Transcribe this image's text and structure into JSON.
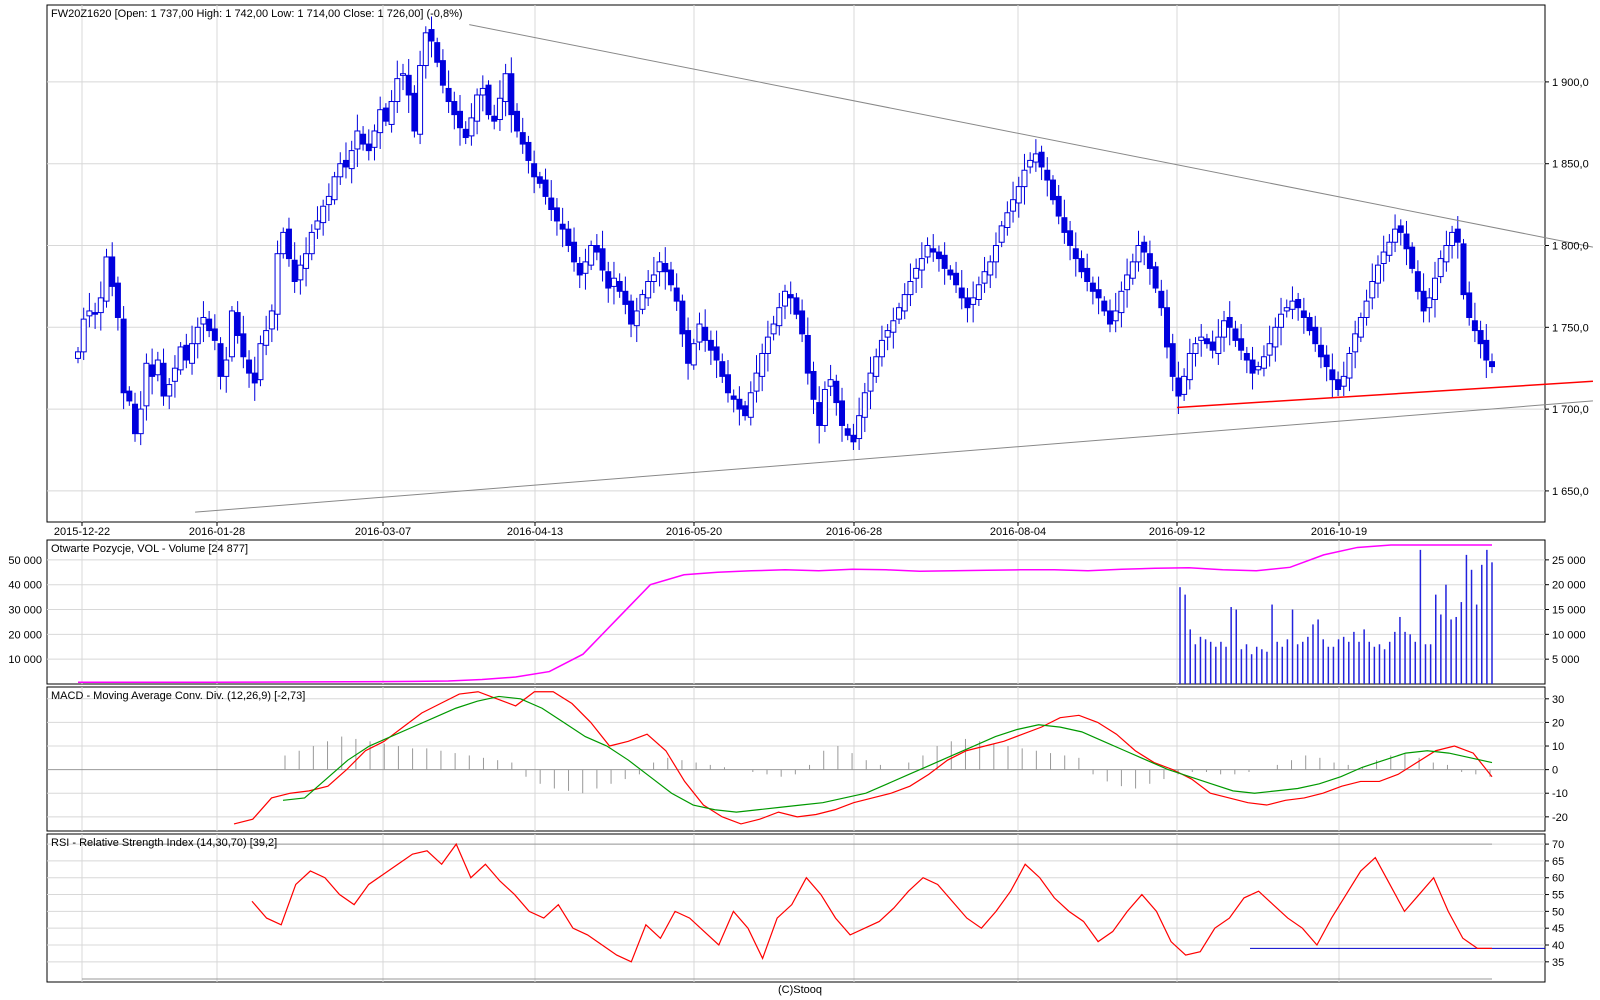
{
  "footer": "(C)Stooq",
  "colors": {
    "candle": "#0000dd",
    "volume": "#2222dd",
    "oi": "#ff00ff",
    "macd": "#ff0000",
    "signal": "#009900",
    "rsi": "#ff0000",
    "support": "#ff0000",
    "trend": "#888888",
    "grid": "#d8d8d8"
  },
  "chart_data": [
    {
      "type": "candlestick",
      "title": "FW20Z1620 [Open: 1 737,00  High: 1 742,00  Low: 1 714,00  Close: 1 726,00] (-0,8%)",
      "x_tick_labels": [
        "2015-12-22",
        "2016-01-28",
        "2016-03-07",
        "2016-04-13",
        "2016-05-20",
        "2016-06-28",
        "2016-08-04",
        "2016-09-12",
        "2016-10-19"
      ],
      "y_tick_labels": [
        "1 900,0",
        "1 850,0",
        "1 800,0",
        "1 750,0",
        "1 700,0",
        "1 650,0"
      ],
      "y_ticks": [
        1900,
        1850,
        1800,
        1750,
        1700,
        1650
      ],
      "ylim": [
        1631,
        1947
      ],
      "grid": true,
      "series": [
        {
          "close": [
            1735,
            1755,
            1760,
            1758,
            1768,
            1793,
            1775,
            1756,
            1710,
            1705,
            1685,
            1700,
            1728,
            1720,
            1730,
            1708,
            1715,
            1725,
            1738,
            1730,
            1740,
            1750,
            1756,
            1748,
            1742,
            1720,
            1730,
            1760,
            1745,
            1732,
            1722,
            1716,
            1740,
            1748,
            1760,
            1795,
            1808,
            1792,
            1778,
            1788,
            1795,
            1808,
            1815,
            1824,
            1830,
            1842,
            1850,
            1848,
            1858,
            1870,
            1862,
            1858,
            1870,
            1883,
            1876,
            1888,
            1902,
            1905,
            1892,
            1870,
            1910,
            1930,
            1925,
            1912,
            1898,
            1888,
            1880,
            1872,
            1866,
            1878,
            1892,
            1896,
            1880,
            1876,
            1890,
            1905,
            1880,
            1870,
            1862,
            1852,
            1842,
            1838,
            1830,
            1822,
            1815,
            1810,
            1800,
            1790,
            1782,
            1790,
            1800,
            1796,
            1785,
            1774,
            1780,
            1772,
            1764,
            1752,
            1760,
            1770,
            1778,
            1782,
            1790,
            1784,
            1776,
            1766,
            1746,
            1728,
            1740,
            1752,
            1742,
            1736,
            1730,
            1720,
            1710,
            1706,
            1700,
            1696,
            1710,
            1722,
            1734,
            1744,
            1752,
            1762,
            1772,
            1768,
            1758,
            1746,
            1722,
            1706,
            1690,
            1712,
            1718,
            1704,
            1690,
            1684,
            1680,
            1696,
            1710,
            1722,
            1732,
            1742,
            1748,
            1754,
            1762,
            1770,
            1778,
            1786,
            1792,
            1800,
            1796,
            1792,
            1786,
            1782,
            1776,
            1768,
            1762,
            1768,
            1776,
            1784,
            1790,
            1800,
            1812,
            1820,
            1828,
            1836,
            1846,
            1852,
            1856,
            1848,
            1840,
            1828,
            1818,
            1808,
            1800,
            1792,
            1784,
            1778,
            1772,
            1768,
            1760,
            1752,
            1760,
            1772,
            1782,
            1790,
            1800,
            1796,
            1786,
            1774,
            1762,
            1738,
            1720,
            1708,
            1720,
            1734,
            1740,
            1744,
            1740,
            1736,
            1744,
            1754,
            1750,
            1742,
            1736,
            1730,
            1722,
            1726,
            1732,
            1740,
            1750,
            1758,
            1762,
            1766,
            1762,
            1756,
            1748,
            1740,
            1732,
            1726,
            1718,
            1712,
            1720,
            1734,
            1746,
            1756,
            1766,
            1778,
            1788,
            1796,
            1802,
            1810,
            1808,
            1798,
            1786,
            1772,
            1760,
            1768,
            1780,
            1792,
            1800,
            1808,
            1802,
            1770,
            1756,
            1748,
            1740,
            1730,
            1726
          ]
        },
        {
          "name": "trend-upper",
          "from": [
            "2016-03-28",
            1935
          ],
          "to": [
            "2016-12-16",
            1799
          ]
        },
        {
          "name": "trend-lower",
          "from": [
            "2016-01-22",
            1637
          ],
          "to": [
            "2016-12-16",
            1705
          ]
        },
        {
          "name": "support",
          "from": [
            "2016-09-12",
            1701
          ],
          "to": [
            "2016-12-16",
            1717
          ]
        }
      ]
    },
    {
      "type": "bar",
      "title": "Otwarte Pozycje, VOL - Volume [24 877]",
      "left_y_tick_labels": [
        "50 000",
        "40 000",
        "30 000",
        "20 000",
        "10 000"
      ],
      "left_y_ticks": [
        50000,
        40000,
        30000,
        20000,
        10000
      ],
      "left_ylim": [
        0,
        58000
      ],
      "right_y_tick_labels": [
        "25 000",
        "20 000",
        "15 000",
        "10 000",
        "5 000"
      ],
      "right_y_ticks": [
        25000,
        20000,
        15000,
        10000,
        5000
      ],
      "right_ylim": [
        0,
        29000
      ],
      "series": [
        {
          "name": "Volume",
          "values": [
            39000,
            36000,
            22000,
            16000,
            19000,
            18000,
            17000,
            15000,
            17000,
            15000,
            31000,
            30000,
            14000,
            16000,
            12000,
            15000,
            14000,
            13000,
            32000,
            17000,
            15000,
            18000,
            30000,
            16000,
            17000,
            19000,
            24000,
            26000,
            18000,
            15000,
            15000,
            18000,
            19000,
            17000,
            21000,
            17000,
            22000,
            17000,
            15000,
            16000,
            14000,
            17000,
            21000,
            27000,
            21000,
            20000,
            17000,
            54000,
            16000,
            16000,
            36000,
            28000,
            40000,
            26000,
            27000,
            33000,
            52000,
            46000,
            32000,
            48000,
            54000,
            49000
          ]
        },
        {
          "name": "Otwarte Pozycje",
          "axis": "right",
          "values": [
            350,
            350,
            350,
            350,
            350,
            380,
            400,
            420,
            450,
            480,
            520,
            600,
            900,
            1400,
            2500,
            6000,
            13000,
            20000,
            22000,
            22500,
            22800,
            23000,
            22800,
            23100,
            23000,
            22700,
            22800,
            22900,
            23000,
            23000,
            22800,
            23100,
            23300,
            23400,
            23000,
            22800,
            23500,
            26000,
            27500,
            28000,
            28000,
            28000,
            28000
          ]
        }
      ]
    },
    {
      "type": "line",
      "title": "MACD - Moving Average Conv. Div. (12,26,9) [-2,73]",
      "y_tick_labels": [
        "30",
        "20",
        "10",
        "0",
        "-10",
        "-20"
      ],
      "y_ticks": [
        30,
        20,
        10,
        0,
        -10,
        -20
      ],
      "ylim": [
        -26,
        35
      ],
      "series": [
        {
          "name": "MACD",
          "values": [
            -23,
            -21,
            -12,
            -10,
            -9,
            -7,
            0,
            8,
            12,
            18,
            24,
            28,
            32,
            33,
            30,
            27,
            33,
            33,
            28,
            20,
            10,
            12,
            15,
            8,
            -5,
            -15,
            -20,
            -23,
            -21,
            -18,
            -20,
            -19,
            -17,
            -14,
            -12,
            -10,
            -7,
            -2,
            4,
            8,
            10,
            12,
            15,
            18,
            22,
            23,
            20,
            15,
            8,
            3,
            0,
            -4,
            -10,
            -12,
            -14,
            -15,
            -13,
            -12,
            -10,
            -7,
            -5,
            -5,
            -2,
            3,
            8,
            10,
            7,
            -3
          ]
        },
        {
          "name": "Signal",
          "values": [
            -13,
            -12,
            -4,
            4,
            10,
            14,
            18,
            22,
            26,
            29,
            31,
            30,
            26,
            20,
            14,
            10,
            4,
            -3,
            -10,
            -15,
            -17,
            -18,
            -17,
            -16,
            -15,
            -14,
            -12,
            -10,
            -6,
            -2,
            2,
            6,
            10,
            14,
            17,
            19,
            18,
            16,
            12,
            8,
            4,
            0,
            -3,
            -6,
            -9,
            -10,
            -9,
            -8,
            -6,
            -3,
            1,
            4,
            7,
            8,
            7,
            5,
            3
          ]
        },
        {
          "name": "Histogram",
          "values": [
            6,
            8,
            10,
            12,
            14,
            13,
            12,
            11,
            10,
            9,
            9,
            8,
            7,
            6,
            5,
            4,
            3,
            -3,
            -6,
            -8,
            -9,
            -10,
            -8,
            -6,
            -4,
            -2,
            3,
            5,
            4,
            3,
            2,
            1,
            0,
            -1,
            -2,
            -3,
            -2,
            2,
            8,
            10,
            7,
            4,
            2,
            0,
            3,
            6,
            10,
            12,
            13,
            12,
            11,
            10,
            9,
            8,
            7,
            6,
            5,
            -2,
            -5,
            -7,
            -8,
            -6,
            -4,
            -2,
            -1,
            -1,
            -2,
            -2,
            -1,
            0,
            2,
            4,
            6,
            5,
            3,
            2,
            1,
            4,
            6,
            7,
            5,
            3,
            2,
            -1,
            -2,
            -3
          ]
        }
      ]
    },
    {
      "type": "line",
      "title": "RSI - Relative Strength Index (14,30,70) [39,2]",
      "y_tick_labels": [
        "70",
        "65",
        "60",
        "55",
        "50",
        "45",
        "40",
        "35"
      ],
      "y_ticks": [
        70,
        65,
        60,
        55,
        50,
        45,
        40,
        35
      ],
      "ylim": [
        29,
        73
      ],
      "levels": [
        70,
        39
      ],
      "series": [
        {
          "name": "RSI",
          "values": [
            53,
            48,
            46,
            58,
            62,
            60,
            55,
            52,
            58,
            61,
            64,
            67,
            68,
            64,
            70,
            60,
            64,
            59,
            55,
            50,
            48,
            52,
            45,
            43,
            40,
            37,
            35,
            46,
            42,
            50,
            48,
            44,
            40,
            50,
            45,
            36,
            48,
            52,
            60,
            55,
            48,
            43,
            45,
            47,
            51,
            56,
            60,
            58,
            53,
            48,
            45,
            50,
            56,
            64,
            60,
            54,
            50,
            47,
            41,
            44,
            50,
            55,
            50,
            41,
            37,
            38,
            45,
            48,
            54,
            56,
            52,
            48,
            45,
            40,
            48,
            55,
            62,
            66,
            58,
            50,
            55,
            60,
            50,
            42,
            39,
            39
          ]
        }
      ]
    }
  ]
}
